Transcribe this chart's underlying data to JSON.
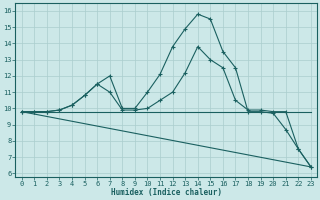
{
  "xlabel": "Humidex (Indice chaleur)",
  "background_color": "#cce8e8",
  "grid_color": "#aacece",
  "line_color": "#1a6060",
  "xlim": [
    -0.5,
    23.5
  ],
  "ylim": [
    5.8,
    16.5
  ],
  "xticks": [
    0,
    1,
    2,
    3,
    4,
    5,
    6,
    7,
    8,
    9,
    10,
    11,
    12,
    13,
    14,
    15,
    16,
    17,
    18,
    19,
    20,
    21,
    22,
    23
  ],
  "yticks": [
    6,
    7,
    8,
    9,
    10,
    11,
    12,
    13,
    14,
    15,
    16
  ],
  "series": [
    {
      "x": [
        0,
        1,
        2,
        3,
        4,
        5,
        6,
        7,
        8,
        9,
        10,
        11,
        12,
        13,
        14,
        15,
        16,
        17,
        18,
        19,
        20,
        21,
        22,
        23
      ],
      "y": [
        9.8,
        9.8,
        9.8,
        9.9,
        10.2,
        10.8,
        11.5,
        12.0,
        10.0,
        10.0,
        11.0,
        12.1,
        13.8,
        14.9,
        15.8,
        15.5,
        13.5,
        12.5,
        9.8,
        9.8,
        9.7,
        8.7,
        7.5,
        6.4
      ],
      "marker": "+"
    },
    {
      "x": [
        0,
        1,
        2,
        3,
        4,
        5,
        6,
        7,
        8,
        9,
        10,
        11,
        12,
        13,
        14,
        15,
        16,
        17,
        18,
        19,
        20,
        21,
        22,
        23
      ],
      "y": [
        9.8,
        9.8,
        9.8,
        9.9,
        10.2,
        10.8,
        11.5,
        11.0,
        9.9,
        9.9,
        10.0,
        10.5,
        11.0,
        12.2,
        13.8,
        13.0,
        12.5,
        10.5,
        9.9,
        9.9,
        9.8,
        9.8,
        7.5,
        6.4
      ],
      "marker": "+"
    },
    {
      "x": [
        0,
        23
      ],
      "y": [
        9.8,
        9.8
      ],
      "marker": null
    },
    {
      "x": [
        0,
        23
      ],
      "y": [
        9.8,
        6.4
      ],
      "marker": null
    }
  ]
}
